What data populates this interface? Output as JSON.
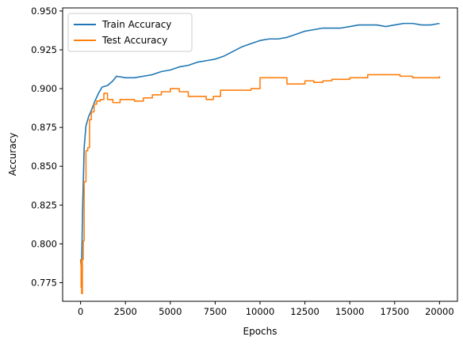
{
  "chart_data": {
    "type": "line",
    "title": "",
    "xlabel": "Epochs",
    "ylabel": "Accuracy",
    "xlim": [
      -1000,
      21000
    ],
    "ylim": [
      0.763,
      0.952
    ],
    "grid": false,
    "legend_position": "top-left",
    "x_ticks": [
      0,
      2500,
      5000,
      7500,
      10000,
      12500,
      15000,
      17500,
      20000
    ],
    "x_tick_labels": [
      "0",
      "2500",
      "5000",
      "7500",
      "10000",
      "12500",
      "15000",
      "17500",
      "20000"
    ],
    "y_ticks": [
      0.775,
      0.8,
      0.825,
      0.85,
      0.875,
      0.9,
      0.925,
      0.95
    ],
    "y_tick_labels": [
      "0.775",
      "0.800",
      "0.825",
      "0.850",
      "0.875",
      "0.900",
      "0.925",
      "0.950"
    ],
    "series": [
      {
        "name": "Train Accuracy",
        "color": "#1f77b4",
        "style": "line",
        "points": [
          [
            0,
            0.79
          ],
          [
            50,
            0.783
          ],
          [
            80,
            0.8
          ],
          [
            120,
            0.826
          ],
          [
            200,
            0.862
          ],
          [
            300,
            0.876
          ],
          [
            450,
            0.882
          ],
          [
            600,
            0.886
          ],
          [
            800,
            0.892
          ],
          [
            1000,
            0.897
          ],
          [
            1200,
            0.901
          ],
          [
            1500,
            0.902
          ],
          [
            1800,
            0.905
          ],
          [
            2000,
            0.908
          ],
          [
            2500,
            0.907
          ],
          [
            3000,
            0.907
          ],
          [
            3500,
            0.908
          ],
          [
            4000,
            0.909
          ],
          [
            4500,
            0.911
          ],
          [
            5000,
            0.912
          ],
          [
            5500,
            0.914
          ],
          [
            6000,
            0.915
          ],
          [
            6500,
            0.917
          ],
          [
            7000,
            0.918
          ],
          [
            7500,
            0.919
          ],
          [
            8000,
            0.921
          ],
          [
            8500,
            0.924
          ],
          [
            9000,
            0.927
          ],
          [
            9500,
            0.929
          ],
          [
            10000,
            0.931
          ],
          [
            10500,
            0.932
          ],
          [
            11000,
            0.932
          ],
          [
            11500,
            0.933
          ],
          [
            12000,
            0.935
          ],
          [
            12500,
            0.937
          ],
          [
            13000,
            0.938
          ],
          [
            13500,
            0.939
          ],
          [
            14000,
            0.939
          ],
          [
            14500,
            0.939
          ],
          [
            15000,
            0.94
          ],
          [
            15500,
            0.941
          ],
          [
            16000,
            0.941
          ],
          [
            16500,
            0.941
          ],
          [
            17000,
            0.94
          ],
          [
            17500,
            0.941
          ],
          [
            18000,
            0.942
          ],
          [
            18500,
            0.942
          ],
          [
            19000,
            0.941
          ],
          [
            19500,
            0.941
          ],
          [
            20000,
            0.942
          ]
        ]
      },
      {
        "name": "Test Accuracy",
        "color": "#ff7f0e",
        "style": "step",
        "points": [
          [
            0,
            0.79
          ],
          [
            30,
            0.772
          ],
          [
            60,
            0.768
          ],
          [
            100,
            0.79
          ],
          [
            150,
            0.802
          ],
          [
            200,
            0.84
          ],
          [
            300,
            0.86
          ],
          [
            400,
            0.862
          ],
          [
            500,
            0.88
          ],
          [
            600,
            0.885
          ],
          [
            750,
            0.89
          ],
          [
            900,
            0.892
          ],
          [
            1100,
            0.893
          ],
          [
            1300,
            0.897
          ],
          [
            1500,
            0.893
          ],
          [
            1800,
            0.891
          ],
          [
            2200,
            0.893
          ],
          [
            3000,
            0.892
          ],
          [
            3500,
            0.894
          ],
          [
            4000,
            0.896
          ],
          [
            4500,
            0.898
          ],
          [
            5000,
            0.9
          ],
          [
            5500,
            0.898
          ],
          [
            6000,
            0.895
          ],
          [
            6500,
            0.895
          ],
          [
            7000,
            0.893
          ],
          [
            7400,
            0.895
          ],
          [
            7800,
            0.899
          ],
          [
            8200,
            0.899
          ],
          [
            9000,
            0.899
          ],
          [
            9500,
            0.9
          ],
          [
            10000,
            0.907
          ],
          [
            11000,
            0.907
          ],
          [
            11500,
            0.903
          ],
          [
            12000,
            0.903
          ],
          [
            12500,
            0.905
          ],
          [
            13000,
            0.904
          ],
          [
            13500,
            0.905
          ],
          [
            14000,
            0.906
          ],
          [
            15000,
            0.907
          ],
          [
            16000,
            0.909
          ],
          [
            17000,
            0.909
          ],
          [
            17800,
            0.908
          ],
          [
            18500,
            0.907
          ],
          [
            19500,
            0.907
          ],
          [
            20000,
            0.908
          ]
        ]
      }
    ]
  }
}
